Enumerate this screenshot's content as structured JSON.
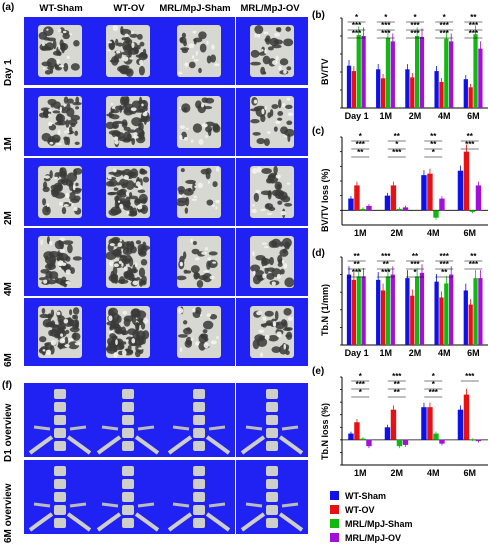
{
  "panel_labels": {
    "a": "(a)",
    "b": "(b)",
    "c": "(c)",
    "d": "(d)",
    "e": "(e)",
    "f": "(f)"
  },
  "columns": [
    "WT-Sham",
    "WT-OV",
    "MRL/MpJ-Sham",
    "MRL/MpJ-OV"
  ],
  "rows": [
    "Day 1",
    "1M",
    "2M",
    "4M",
    "6M"
  ],
  "overview_rows": [
    "D1 overview",
    "6M overview"
  ],
  "colors": {
    "wt_sham": "#1010e8",
    "wt_ov": "#e81010",
    "mrl_sham": "#10b810",
    "mrl_ov": "#a010d8",
    "tile_bg": "#1f22f2"
  },
  "legend": [
    {
      "label": "WT-Sham",
      "color": "#1010e8"
    },
    {
      "label": "WT-OV",
      "color": "#e81010"
    },
    {
      "label": "MRL/MpJ-Sham",
      "color": "#10b810"
    },
    {
      "label": "MRL/MpJ-OV",
      "color": "#a010d8"
    }
  ],
  "chart_data": [
    {
      "id": "b",
      "type": "bar",
      "ylabel": "BV/TV",
      "ylim": [
        0,
        1.0
      ],
      "yticks": [
        0,
        0.2,
        0.4,
        0.6,
        0.8,
        1.0
      ],
      "categories": [
        "Day 1",
        "1M",
        "2M",
        "4M",
        "6M"
      ],
      "series": [
        {
          "name": "WT-Sham",
          "values": [
            0.47,
            0.43,
            0.43,
            0.41,
            0.32
          ]
        },
        {
          "name": "WT-OV",
          "values": [
            0.41,
            0.33,
            0.34,
            0.29,
            0.23
          ]
        },
        {
          "name": "MRL/MpJ-Sham",
          "values": [
            0.81,
            0.78,
            0.8,
            0.77,
            0.82
          ]
        },
        {
          "name": "MRL/MpJ-OV",
          "values": [
            0.8,
            0.74,
            0.79,
            0.74,
            0.66
          ]
        }
      ],
      "annotations": [
        "*",
        "***",
        "***",
        "*",
        "***",
        "***",
        "*",
        "***",
        "***",
        "*",
        "***",
        "***",
        "**",
        "***",
        "***"
      ]
    },
    {
      "id": "c",
      "type": "bar",
      "ylabel": "BV/TV loss (%)",
      "ylim": [
        -10,
        50
      ],
      "yticks": [
        0,
        10,
        20,
        30,
        40,
        50
      ],
      "categories": [
        "1M",
        "2M",
        "4M",
        "6M"
      ],
      "series": [
        {
          "name": "WT-Sham",
          "values": [
            8,
            10,
            24,
            27
          ]
        },
        {
          "name": "WT-OV",
          "values": [
            17,
            17,
            25,
            40
          ]
        },
        {
          "name": "MRL/MpJ-Sham",
          "values": [
            1,
            1,
            -5,
            -1
          ]
        },
        {
          "name": "MRL/MpJ-OV",
          "values": [
            3,
            2,
            8,
            17
          ]
        }
      ],
      "annotations": [
        "*",
        "***",
        "**",
        "**",
        "*",
        "***",
        "**",
        "**",
        "*",
        "**",
        "***"
      ]
    },
    {
      "id": "d",
      "type": "bar",
      "ylabel": "Tb.N (1/mm)",
      "ylim": [
        0,
        5
      ],
      "yticks": [
        0,
        1,
        2,
        3,
        4,
        5
      ],
      "categories": [
        "Day 1",
        "1M",
        "2M",
        "4M",
        "6M"
      ],
      "series": [
        {
          "name": "WT-Sham",
          "values": [
            4.0,
            3.7,
            3.8,
            3.6,
            3.1
          ]
        },
        {
          "name": "WT-OV",
          "values": [
            3.7,
            3.1,
            2.8,
            2.7,
            2.3
          ]
        },
        {
          "name": "MRL/MpJ-Sham",
          "values": [
            3.9,
            3.9,
            3.9,
            3.5,
            3.8
          ]
        },
        {
          "name": "MRL/MpJ-OV",
          "values": [
            3.9,
            4.0,
            4.1,
            4.0,
            3.8
          ]
        }
      ],
      "annotations": [
        "**",
        "**",
        "***",
        "***",
        "**",
        "***",
        "**",
        "***",
        "*",
        "***",
        "***",
        "**",
        "**",
        "***"
      ]
    },
    {
      "id": "e",
      "type": "bar",
      "ylabel": "Tb.N loss (%)",
      "ylim": [
        -20,
        50
      ],
      "yticks": [
        -20,
        -10,
        0,
        10,
        20,
        30,
        40,
        50
      ],
      "categories": [
        "1M",
        "2M",
        "4M",
        "6M"
      ],
      "series": [
        {
          "name": "WT-Sham",
          "values": [
            5,
            10,
            26,
            24
          ]
        },
        {
          "name": "WT-OV",
          "values": [
            14,
            24,
            26,
            36
          ]
        },
        {
          "name": "MRL/MpJ-Sham",
          "values": [
            1,
            -5,
            5,
            0
          ]
        },
        {
          "name": "MRL/MpJ-OV",
          "values": [
            -5,
            -4,
            -3,
            -1
          ]
        }
      ],
      "annotations": [
        "*",
        "***",
        "*",
        "***",
        "**",
        "**",
        "*",
        "*",
        "***",
        "***"
      ]
    }
  ]
}
